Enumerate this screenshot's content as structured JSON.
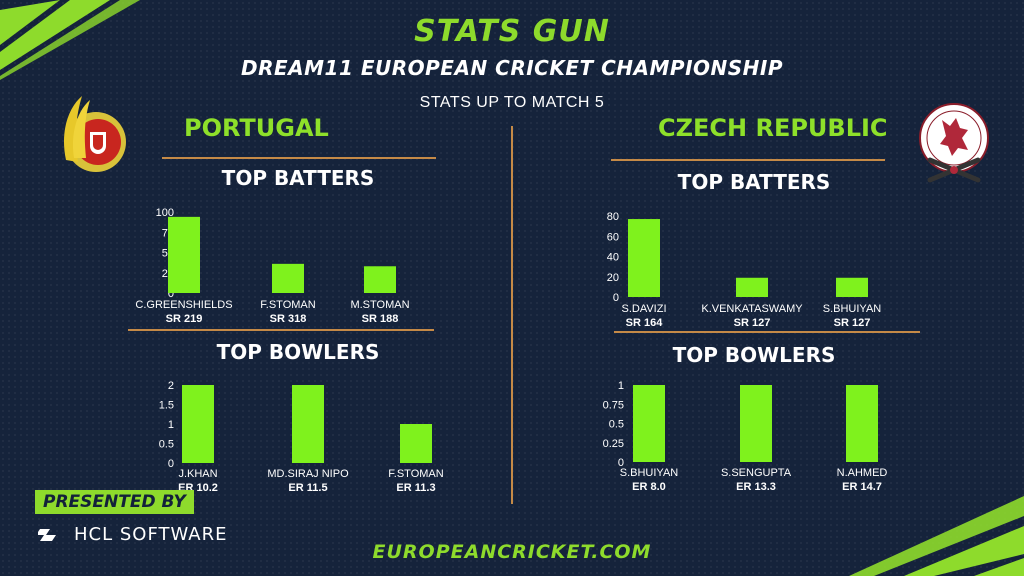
{
  "brand": "STATS GUN",
  "event": "DREAM11 EUROPEAN CRICKET CHAMPIONSHIP",
  "match_note": "STATS UP TO MATCH 5",
  "presented_by": "PRESENTED BY",
  "sponsor": "HCL SOFTWARE",
  "website": "EUROPEANCRICKET.COM",
  "colors": {
    "accent": "#8edb2c",
    "bar": "#7ff21d",
    "background": "#15233b",
    "rule": "#c58a47"
  },
  "teams": [
    {
      "name": "PORTUGAL",
      "logo_icon": "portugal-cricket-logo"
    },
    {
      "name": "CZECH REPUBLIC",
      "logo_icon": "czech-cricket-logo"
    }
  ],
  "chart_data": [
    {
      "type": "bar",
      "title": "TOP BATTERS",
      "team": "PORTUGAL",
      "categories": [
        "C.GREENSHIELDS",
        "F.STOMAN",
        "M.STOMAN"
      ],
      "sublabels": [
        "SR 219",
        "SR 318",
        "SR 188"
      ],
      "values": [
        94,
        36,
        33
      ],
      "ylim": [
        0,
        100
      ],
      "yticks": [
        0,
        25,
        50,
        75,
        100
      ],
      "ytick_labels": [
        "0",
        "25",
        "50",
        "75",
        "100"
      ]
    },
    {
      "type": "bar",
      "title": "TOP BOWLERS",
      "team": "PORTUGAL",
      "categories": [
        "J.KHAN",
        "MD.SIRAJ NIPO",
        "F.STOMAN"
      ],
      "sublabels": [
        "ER 10.2",
        "ER 11.5",
        "ER 11.3"
      ],
      "values": [
        2,
        2,
        1
      ],
      "ylim": [
        0,
        2
      ],
      "yticks": [
        0,
        0.5,
        1,
        1.5,
        2
      ],
      "ytick_labels": [
        "0",
        "0.5",
        "1",
        "1.5",
        "2"
      ]
    },
    {
      "type": "bar",
      "title": "TOP BATTERS",
      "team": "CZECH REPUBLIC",
      "categories": [
        "S.DAVIZI",
        "K.VENKATASWAMY",
        "S.BHUIYAN"
      ],
      "sublabels": [
        "SR 164",
        "SR 127",
        "SR 127"
      ],
      "values": [
        77,
        19,
        19
      ],
      "ylim": [
        0,
        80
      ],
      "yticks": [
        0,
        20,
        40,
        60,
        80
      ],
      "ytick_labels": [
        "0",
        "20",
        "40",
        "60",
        "80"
      ]
    },
    {
      "type": "bar",
      "title": "TOP BOWLERS",
      "team": "CZECH REPUBLIC",
      "categories": [
        "S.BHUIYAN",
        "S.SENGUPTA",
        "N.AHMED"
      ],
      "sublabels": [
        "ER 8.0",
        "ER 13.3",
        "ER 14.7"
      ],
      "values": [
        1,
        1,
        1
      ],
      "ylim": [
        0,
        1
      ],
      "yticks": [
        0,
        0.25,
        0.5,
        0.75,
        1
      ],
      "ytick_labels": [
        "0",
        "0.25",
        "0.5",
        "0.75",
        "1"
      ]
    }
  ]
}
